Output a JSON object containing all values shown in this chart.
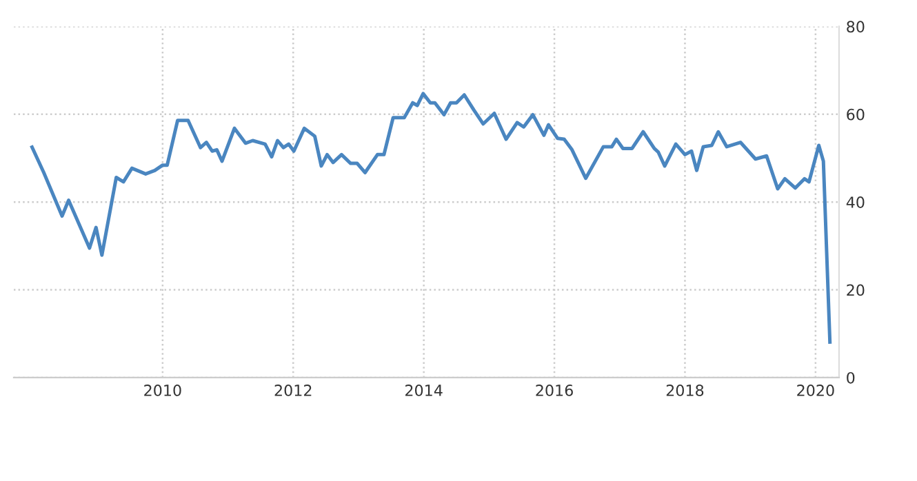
{
  "chart_data": {
    "type": "line",
    "x": [
      2008.0,
      2008.18,
      2008.46,
      2008.56,
      2008.88,
      2008.98,
      2009.07,
      2009.29,
      2009.4,
      2009.53,
      2009.74,
      2009.88,
      2010.0,
      2010.07,
      2010.23,
      2010.39,
      2010.58,
      2010.67,
      2010.76,
      2010.83,
      2010.91,
      2011.1,
      2011.27,
      2011.38,
      2011.57,
      2011.67,
      2011.76,
      2011.85,
      2011.93,
      2012.01,
      2012.17,
      2012.33,
      2012.43,
      2012.52,
      2012.61,
      2012.74,
      2012.88,
      2012.98,
      2013.1,
      2013.29,
      2013.39,
      2013.53,
      2013.7,
      2013.83,
      2013.9,
      2013.99,
      2014.1,
      2014.17,
      2014.31,
      2014.41,
      2014.5,
      2014.62,
      2014.77,
      2014.91,
      2015.08,
      2015.26,
      2015.43,
      2015.53,
      2015.67,
      2015.84,
      2015.91,
      2016.05,
      2016.15,
      2016.27,
      2016.48,
      2016.75,
      2016.88,
      2016.95,
      2017.05,
      2017.19,
      2017.36,
      2017.53,
      2017.59,
      2017.69,
      2017.86,
      2018.0,
      2018.1,
      2018.18,
      2018.28,
      2018.41,
      2018.51,
      2018.64,
      2018.85,
      2019.08,
      2019.25,
      2019.42,
      2019.53,
      2019.69,
      2019.83,
      2019.9,
      2020.05,
      2020.12,
      2020.22
    ],
    "series": [
      {
        "color": "#4a86c0",
        "values": [
          52.5,
          46.7,
          36.8,
          40.4,
          29.5,
          34.2,
          27.9,
          45.6,
          44.6,
          47.7,
          46.4,
          47.2,
          48.4,
          48.4,
          58.6,
          58.6,
          52.4,
          53.6,
          51.6,
          51.9,
          49.3,
          56.8,
          53.4,
          54.0,
          53.2,
          50.3,
          54.0,
          52.4,
          53.2,
          51.6,
          56.8,
          55.0,
          48.2,
          50.8,
          49.0,
          50.8,
          48.8,
          48.8,
          46.7,
          50.8,
          50.8,
          59.2,
          59.2,
          62.6,
          62.0,
          64.7,
          62.6,
          62.6,
          59.9,
          62.6,
          62.6,
          64.4,
          60.9,
          57.8,
          60.2,
          54.3,
          58.1,
          57.1,
          59.9,
          55.2,
          57.6,
          54.5,
          54.3,
          51.9,
          45.4,
          52.6,
          52.6,
          54.3,
          52.2,
          52.2,
          56.0,
          52.2,
          51.4,
          48.2,
          53.2,
          50.8,
          51.6,
          47.2,
          52.6,
          52.9,
          56.0,
          52.6,
          53.6,
          49.8,
          50.5,
          43.0,
          45.3,
          43.2,
          45.3,
          44.6,
          52.9,
          49.3,
          8.1
        ]
      }
    ],
    "xlim": [
      2007.72,
      2020.36
    ],
    "xticks": [
      2010,
      2012,
      2014,
      2016,
      2018,
      2020
    ],
    "ylim": [
      0,
      80
    ],
    "yticks": [
      0,
      20,
      40,
      60,
      80
    ],
    "grid": true,
    "legend": false,
    "marker": "none",
    "line_style": "solid"
  }
}
